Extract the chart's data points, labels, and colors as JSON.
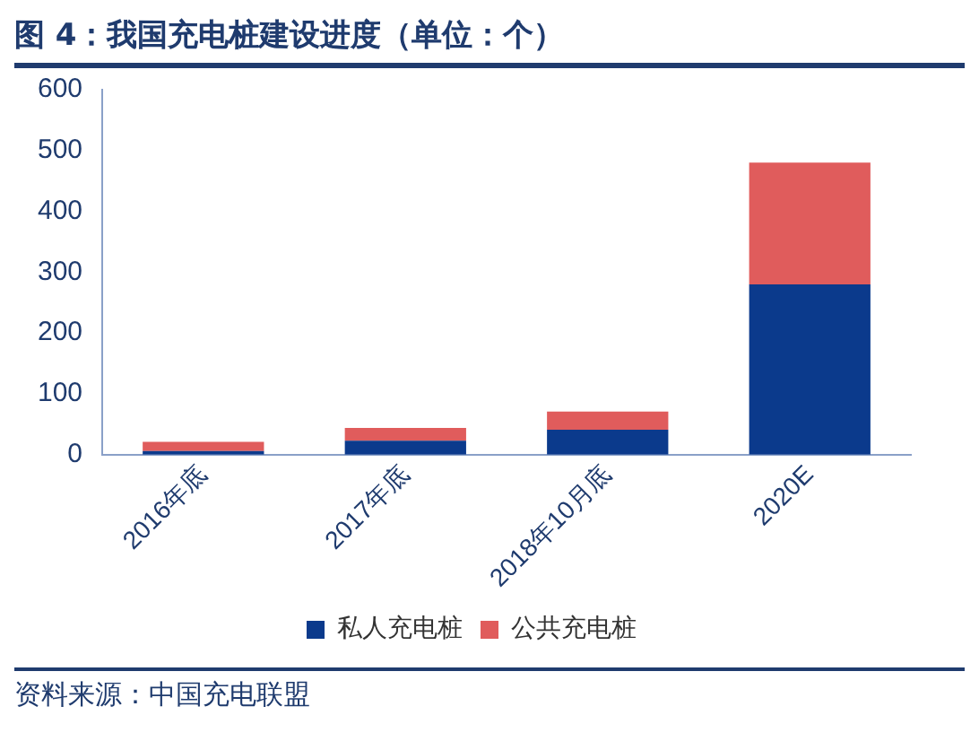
{
  "chart_data": {
    "type": "bar",
    "title": "图 4：我国充电桩建设进度（单位：个）",
    "categories": [
      "2016年底",
      "2017年底",
      "2018年10月底",
      "2020E"
    ],
    "stacked": true,
    "series": [
      {
        "name": "私人充电桩",
        "color": "#0b3a8c",
        "values": [
          6,
          23,
          41,
          280
        ]
      },
      {
        "name": "公共充电桩",
        "color": "#e05c5c",
        "values": [
          15,
          21,
          30,
          200
        ]
      }
    ],
    "ylim": [
      0,
      600
    ],
    "yticks": [
      0,
      100,
      200,
      300,
      400,
      500,
      600
    ],
    "grid": false,
    "legend": "bottom",
    "annotations": [
      "资料来源：中国充电联盟"
    ]
  }
}
